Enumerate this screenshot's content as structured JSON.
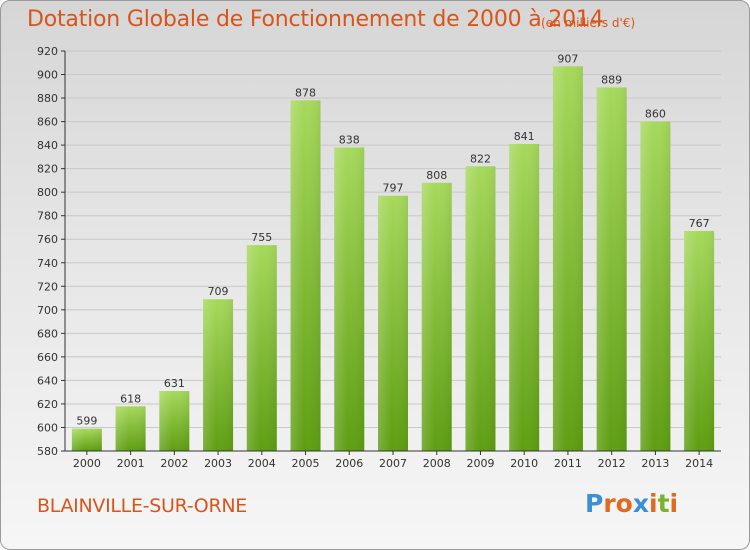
{
  "header": {
    "title": "Dotation Globale de Fonctionnement de 2000 à 2014",
    "unit": "(en milliers d'€)"
  },
  "footer": {
    "commune": "BLAINVILLE-SUR-ORNE",
    "logo_text": "Proxiti",
    "logo_colors": [
      "#3a8fd8",
      "#e06a1e",
      "#e06a1e",
      "#3a8fd8",
      "#e06a1e",
      "#7ab32e",
      "#e06a1e"
    ]
  },
  "colors": {
    "title": "#d8551a",
    "bar_top": "#a6d95c",
    "bar_bottom": "#5e9e12",
    "grid": "#c8c8c8",
    "axis": "#333333"
  },
  "chart_data": {
    "type": "bar",
    "categories": [
      "2000",
      "2001",
      "2002",
      "2003",
      "2004",
      "2005",
      "2006",
      "2007",
      "2008",
      "2009",
      "2010",
      "2011",
      "2012",
      "2013",
      "2014"
    ],
    "values": [
      599,
      618,
      631,
      709,
      755,
      878,
      838,
      797,
      808,
      822,
      841,
      907,
      889,
      860,
      767
    ],
    "ylim": [
      580,
      920
    ],
    "yticks": [
      580,
      600,
      620,
      640,
      660,
      680,
      700,
      720,
      740,
      760,
      780,
      800,
      820,
      840,
      860,
      880,
      900,
      920
    ],
    "grid": true,
    "data_labels": true
  }
}
